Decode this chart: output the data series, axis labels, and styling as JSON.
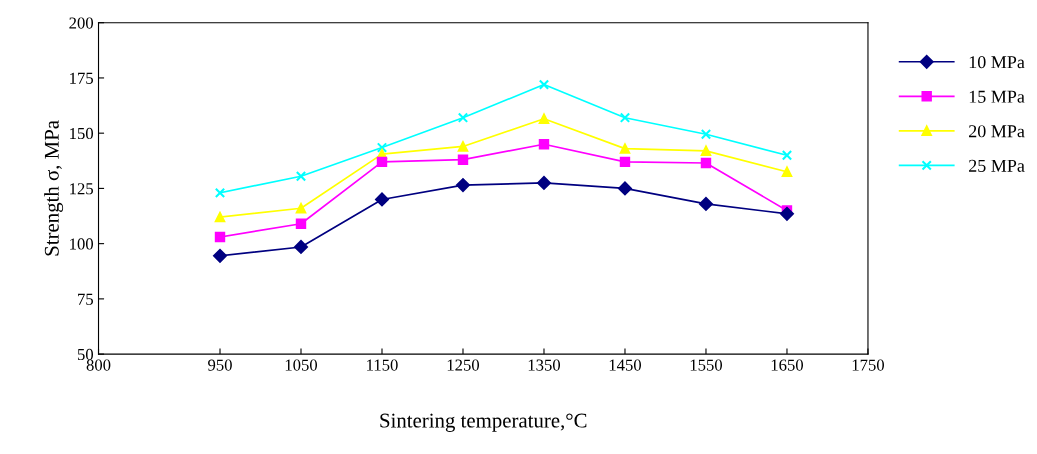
{
  "chart_data": {
    "type": "line",
    "xlabel": "Sintering temperature,°C",
    "ylabel": "Strength σ, MPa",
    "x": [
      950,
      1050,
      1150,
      1250,
      1350,
      1450,
      1550,
      1650
    ],
    "series": [
      {
        "name": "10 MPa",
        "color": "#000080",
        "marker": "diamond",
        "values": [
          94.5,
          98.5,
          120,
          126.5,
          127.5,
          125,
          118,
          113.5
        ]
      },
      {
        "name": "15 MPa",
        "color": "#ff00ff",
        "marker": "square",
        "values": [
          103,
          109,
          137,
          138,
          145,
          137,
          136.5,
          115
        ]
      },
      {
        "name": "20 MPa",
        "color": "#ffff00",
        "marker": "triangle",
        "values": [
          112,
          116,
          140.5,
          144,
          156.5,
          143,
          142,
          132.5
        ]
      },
      {
        "name": "25 MPa",
        "color": "#00ffff",
        "marker": "cross",
        "values": [
          123,
          130.5,
          143.5,
          157,
          172,
          157,
          149.5,
          140
        ]
      }
    ],
    "xlim": [
      800,
      1750
    ],
    "xticks": [
      800,
      950,
      1050,
      1150,
      1250,
      1350,
      1450,
      1550,
      1650,
      1750
    ],
    "ylim": [
      50,
      200
    ],
    "yticks": [
      50,
      75,
      100,
      125,
      150,
      175,
      200
    ],
    "grid": false,
    "legend": "right",
    "line_style": "solid"
  }
}
